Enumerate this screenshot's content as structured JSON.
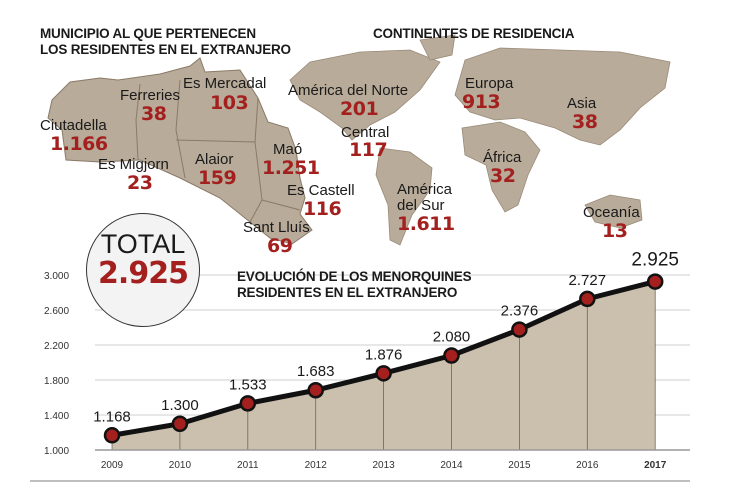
{
  "map_section": {
    "title_line1": "MUNICIPIO AL QUE PERTENECEN",
    "title_line2": "LOS RESIDENTES EN EL EXTRANJERO",
    "municipalities": [
      {
        "name": "Ciutadella",
        "value": "1.166"
      },
      {
        "name": "Ferreries",
        "value": "38"
      },
      {
        "name": "Es Mercadal",
        "value": "103"
      },
      {
        "name": "Es Migjorn",
        "value": "23"
      },
      {
        "name": "Alaior",
        "value": "159"
      },
      {
        "name": "Maó",
        "value": "1.251"
      },
      {
        "name": "Es Castell",
        "value": "116"
      },
      {
        "name": "Sant Lluís",
        "value": "69"
      }
    ]
  },
  "continents_section": {
    "title": "CONTINENTES DE RESIDENCIA",
    "continents": [
      {
        "name": "América del Norte",
        "value": "201"
      },
      {
        "name": "Central",
        "value": "117"
      },
      {
        "name": "América",
        "name2": "del Sur",
        "value": "1.611"
      },
      {
        "name": "Europa",
        "value": "913"
      },
      {
        "name": "Asia",
        "value": "38"
      },
      {
        "name": "África",
        "value": "32"
      },
      {
        "name": "Oceanía",
        "value": "13"
      }
    ]
  },
  "total": {
    "label": "TOTAL",
    "value": "2.925"
  },
  "colors": {
    "accent": "#a3201e",
    "map": "#b8ab99",
    "area": "#cbbfad",
    "line": "#111111"
  },
  "chart_data": {
    "type": "area",
    "title_line1": "EVOLUCIÓN DE LOS MENORQUINES",
    "title_line2": "RESIDENTES EN EL EXTRANJERO",
    "categories": [
      "2009",
      "2010",
      "2011",
      "2012",
      "2013",
      "2014",
      "2015",
      "2016",
      "2017"
    ],
    "values": [
      1168,
      1300,
      1533,
      1683,
      1876,
      2080,
      2376,
      2727,
      2925
    ],
    "value_labels": [
      "1.168",
      "1.300",
      "1.533",
      "1.683",
      "1.876",
      "2.080",
      "2.376",
      "2.727",
      "2.925"
    ],
    "yticks": [
      1000,
      1400,
      1800,
      2200,
      2600,
      3000
    ],
    "ytick_labels": [
      "1.000",
      "1.400",
      "1.800",
      "2.200",
      "2.600",
      "3.000"
    ],
    "ylim": [
      1000,
      3000
    ],
    "grid": true
  }
}
